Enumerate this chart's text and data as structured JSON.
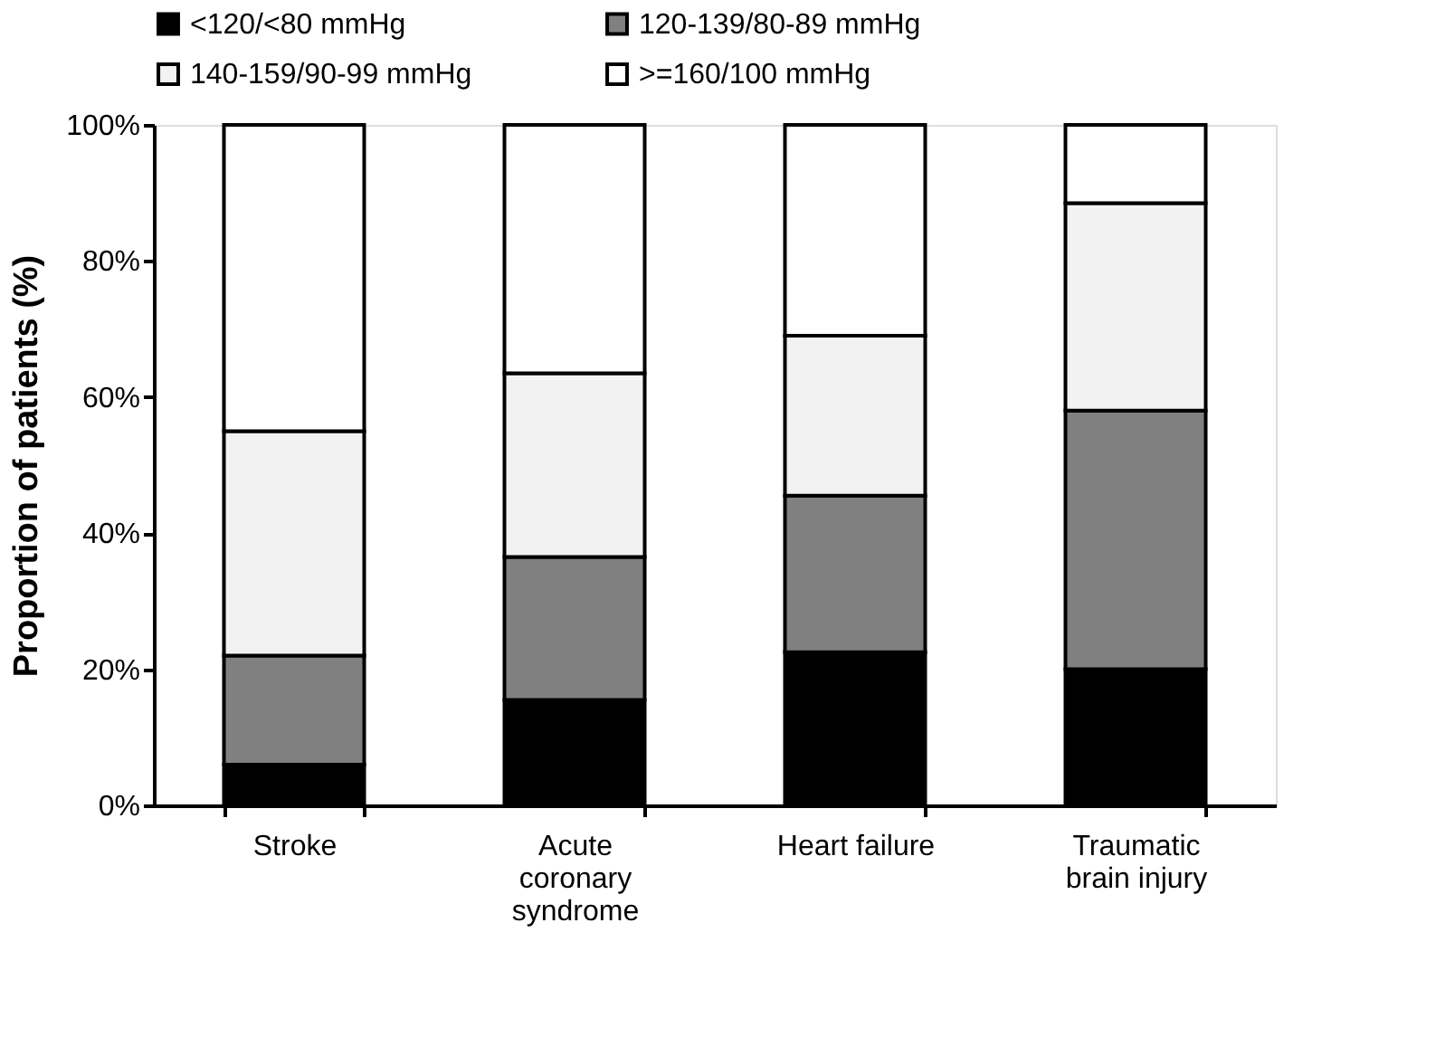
{
  "chart_data": {
    "type": "bar",
    "stacked": true,
    "ylabel": "Proportion of patients (%)",
    "categories": [
      "Stroke",
      "Acute coronary syndrome",
      "Heart failure",
      "Traumatic brain injury"
    ],
    "series": [
      {
        "name": "<120/<80 mmHg",
        "color": "#000000",
        "values": [
          6,
          15.5,
          22.5,
          20
        ]
      },
      {
        "name": "120-139/80-89 mmHg",
        "color": "#808080",
        "values": [
          16,
          21,
          23,
          38
        ]
      },
      {
        "name": "140-159/90-99 mmHg",
        "color": "#f2f2f2",
        "values": [
          33,
          27,
          23.5,
          30.5
        ]
      },
      {
        "name": ">=160/100 mmHg",
        "color": "#ffffff",
        "values": [
          45,
          36.5,
          31,
          11.5
        ]
      }
    ],
    "ylim": [
      0,
      100
    ],
    "yticks": [
      {
        "value": 0,
        "label": "0%"
      },
      {
        "value": 20,
        "label": "20%"
      },
      {
        "value": 40,
        "label": "40%"
      },
      {
        "value": 60,
        "label": "60%"
      },
      {
        "value": 80,
        "label": "80%"
      },
      {
        "value": 100,
        "label": "100%"
      }
    ],
    "grid": false,
    "legend": "top"
  }
}
